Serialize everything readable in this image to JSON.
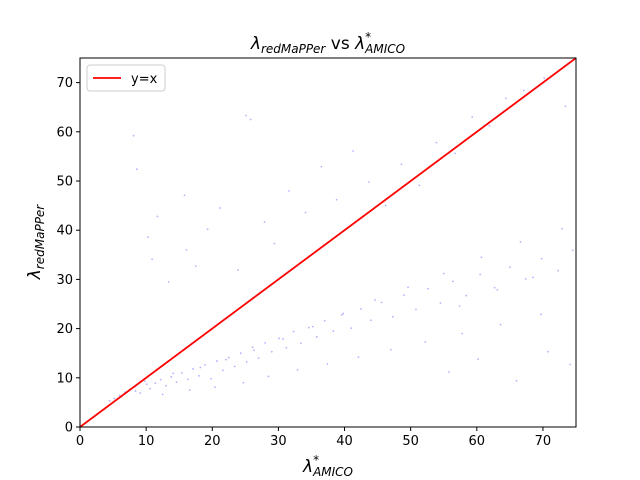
{
  "chart_data": {
    "type": "scatter",
    "title": {
      "prefix": "λ",
      "prefix_sub": "redMaPPer",
      "joiner": " vs ",
      "suffix": "λ",
      "suffix_sup": "*",
      "suffix_sub": "AMICO"
    },
    "xlabel": {
      "main": "λ",
      "sup": "*",
      "sub": "AMICO"
    },
    "ylabel": {
      "main": "λ",
      "sub": "redMaPPer"
    },
    "xlim": [
      0,
      75
    ],
    "ylim": [
      0,
      75
    ],
    "xticks": [
      0,
      10,
      20,
      30,
      40,
      50,
      60,
      70
    ],
    "yticks": [
      0,
      10,
      20,
      30,
      40,
      50,
      60,
      70
    ],
    "xtick_labels": [
      "0",
      "10",
      "20",
      "30",
      "40",
      "50",
      "60",
      "70"
    ],
    "ytick_labels": [
      "0",
      "10",
      "20",
      "30",
      "40",
      "50",
      "60",
      "70"
    ],
    "grid": false,
    "legend": {
      "placement": "top-left",
      "entries": [
        {
          "name": "y=x",
          "color": "#ff0000"
        }
      ]
    },
    "series": [
      {
        "name": "y=x",
        "kind": "line",
        "color": "#ff0000",
        "x": [
          0,
          75
        ],
        "y": [
          0,
          75
        ]
      },
      {
        "kind": "scatter",
        "color": "#0000ff",
        "opacity": 0.3,
        "x": [
          4.5,
          5.2,
          6.0,
          6.8,
          7.5,
          8.3,
          9.1,
          9.8,
          10.6,
          11.4,
          12.2,
          13.0,
          13.8,
          14.6,
          15.4,
          16.3,
          17.1,
          18.0,
          18.9,
          19.8,
          20.7,
          21.6,
          22.5,
          23.4,
          24.3,
          25.2,
          26.1,
          27.0,
          28.0,
          29.0,
          30.1,
          31.2,
          32.3,
          33.4,
          34.6,
          35.8,
          37.0,
          38.3,
          39.6,
          41.0,
          42.5,
          44.0,
          45.6,
          47.3,
          49.0,
          50.8,
          52.6,
          54.5,
          56.4,
          58.4,
          60.5,
          62.7,
          65.0,
          67.4,
          69.8,
          72.3,
          74.5,
          6.2,
          8.4,
          10.1,
          12.5,
          14.1,
          16.6,
          18.2,
          20.4,
          22.1,
          24.7,
          26.3,
          28.5,
          30.7,
          32.9,
          35.2,
          37.4,
          39.8,
          42.1,
          44.6,
          47.0,
          49.6,
          52.2,
          55.0,
          57.8,
          60.7,
          63.6,
          66.6,
          69.7,
          72.9,
          8.1,
          8.6,
          10.3,
          10.9,
          11.7,
          13.4,
          15.8,
          16.1,
          17.5,
          19.3,
          21.2,
          23.9,
          25.1,
          25.8,
          27.9,
          29.4,
          31.6,
          34.1,
          36.5,
          38.8,
          41.3,
          43.7,
          46.2,
          48.6,
          51.3,
          53.9,
          56.7,
          59.3,
          61.9,
          64.4,
          67.1,
          70.2,
          73.4,
          55.8,
          60.2,
          66.0,
          70.8,
          74.1,
          57.4,
          63.1,
          68.5
        ],
        "y": [
          5.3,
          5.8,
          6.4,
          7.1,
          7.6,
          8.2,
          6.9,
          9.3,
          7.8,
          8.9,
          9.6,
          8.4,
          10.2,
          9.1,
          11.0,
          9.7,
          11.8,
          10.4,
          12.6,
          9.8,
          13.4,
          11.5,
          14.1,
          12.3,
          15.0,
          13.2,
          16.2,
          14.0,
          17.1,
          15.3,
          18.0,
          16.1,
          19.4,
          17.0,
          20.2,
          18.3,
          21.6,
          19.5,
          22.8,
          20.1,
          24.0,
          21.7,
          25.3,
          22.4,
          26.8,
          23.9,
          28.1,
          25.2,
          29.6,
          26.7,
          31.0,
          28.3,
          32.5,
          30.1,
          34.2,
          31.8,
          35.9,
          6.1,
          7.3,
          8.7,
          6.6,
          10.9,
          7.5,
          12.1,
          8.1,
          13.7,
          9.0,
          15.6,
          10.3,
          17.9,
          11.6,
          20.4,
          12.8,
          23.1,
          14.2,
          25.8,
          15.7,
          28.4,
          17.3,
          31.2,
          19.0,
          34.5,
          20.8,
          37.6,
          22.9,
          40.3,
          59.2,
          52.4,
          38.6,
          34.1,
          42.8,
          29.5,
          47.1,
          36.0,
          32.7,
          40.2,
          44.5,
          31.9,
          63.3,
          62.5,
          41.7,
          37.3,
          48.0,
          43.6,
          52.9,
          46.2,
          56.1,
          49.8,
          45.0,
          53.4,
          49.1,
          57.8,
          55.6,
          63.0,
          61.2,
          66.8,
          68.4,
          70.9,
          65.2,
          11.2,
          13.8,
          9.4,
          15.3,
          12.7,
          24.6,
          27.9,
          30.4
        ]
      }
    ]
  }
}
